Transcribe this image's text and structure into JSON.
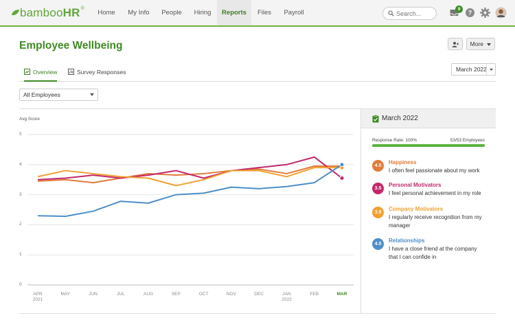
{
  "nav": {
    "logo": "bamboo",
    "logo_suffix": "HR",
    "logo_reg": "®",
    "items": [
      {
        "label": "Home"
      },
      {
        "label": "My Info"
      },
      {
        "label": "People"
      },
      {
        "label": "Hiring"
      },
      {
        "label": "Reports"
      },
      {
        "label": "Files"
      },
      {
        "label": "Payroll"
      }
    ],
    "active": "Reports",
    "search_placeholder": "Search...",
    "inbox_count": "9"
  },
  "header": {
    "title": "Employee Wellbeing",
    "more_label": "More"
  },
  "tabs": [
    {
      "label": "Overview",
      "active": true
    },
    {
      "label": "Survey Responses",
      "active": false
    }
  ],
  "month_select": "March 2022",
  "employee_select": "All Employees",
  "colors": {
    "brand": "#3f8a22",
    "happiness": "#e07b39",
    "personal": "#c2286b",
    "company": "#f0a030",
    "relationships": "#4d8ec8"
  },
  "side": {
    "title": "March 2022",
    "response_rate_label": "Response Rate: 100%",
    "response_count": "53/53 Employees",
    "response_rate": 1.0,
    "metrics": [
      {
        "score": "4.0",
        "title": "Happiness",
        "color": "#e07b39",
        "desc": "I often feel passionate about my work"
      },
      {
        "score": "3.5",
        "title": "Personal Motivators",
        "color": "#c2286b",
        "desc": "I feel personal achievement in my role"
      },
      {
        "score": "3.9",
        "title": "Company Motivators",
        "color": "#f0a030",
        "desc": "I regularly receive recognition from my manager"
      },
      {
        "score": "4.0",
        "title": "Relationships",
        "color": "#4d8ec8",
        "desc": "I have a close friend at the company that I can confide in"
      }
    ]
  },
  "chart_data": {
    "type": "line",
    "ylabel": "Avg Score",
    "ylim": [
      0,
      5
    ],
    "yticks": [
      "5",
      "4",
      "3",
      "2",
      "1",
      "0"
    ],
    "categories": [
      "APR 2021",
      "MAY",
      "JUN",
      "JUL",
      "AUG",
      "SEP",
      "OCT",
      "NOV",
      "DEC",
      "JAN 2022",
      "FEB",
      "MAR"
    ],
    "x_labels": [
      [
        "APR",
        "2021"
      ],
      [
        "MAY",
        ""
      ],
      [
        "JUN",
        ""
      ],
      [
        "JUL",
        ""
      ],
      [
        "AUG",
        ""
      ],
      [
        "SEP",
        ""
      ],
      [
        "OCT",
        ""
      ],
      [
        "NOV",
        ""
      ],
      [
        "DEC",
        ""
      ],
      [
        "JAN",
        "2022"
      ],
      [
        "FEB",
        ""
      ],
      [
        "MAR",
        ""
      ]
    ],
    "series": [
      {
        "name": "Happiness",
        "color": "#e07b39",
        "values": [
          3.45,
          3.5,
          3.4,
          3.55,
          3.7,
          3.65,
          3.7,
          3.8,
          3.85,
          3.7,
          3.95,
          3.95
        ]
      },
      {
        "name": "Personal Motivators",
        "color": "#c2286b",
        "values": [
          3.5,
          3.55,
          3.65,
          3.55,
          3.65,
          3.8,
          3.55,
          3.8,
          3.9,
          4.0,
          4.25,
          3.55
        ]
      },
      {
        "name": "Company Motivators",
        "color": "#f0a030",
        "values": [
          3.6,
          3.8,
          3.7,
          3.6,
          3.55,
          3.3,
          3.5,
          3.8,
          3.8,
          3.6,
          3.9,
          3.9
        ]
      },
      {
        "name": "Relationships",
        "color": "#4d8ec8",
        "values": [
          2.3,
          2.28,
          2.45,
          2.78,
          2.72,
          3.0,
          3.05,
          3.25,
          3.2,
          3.27,
          3.4,
          4.0
        ]
      }
    ]
  }
}
